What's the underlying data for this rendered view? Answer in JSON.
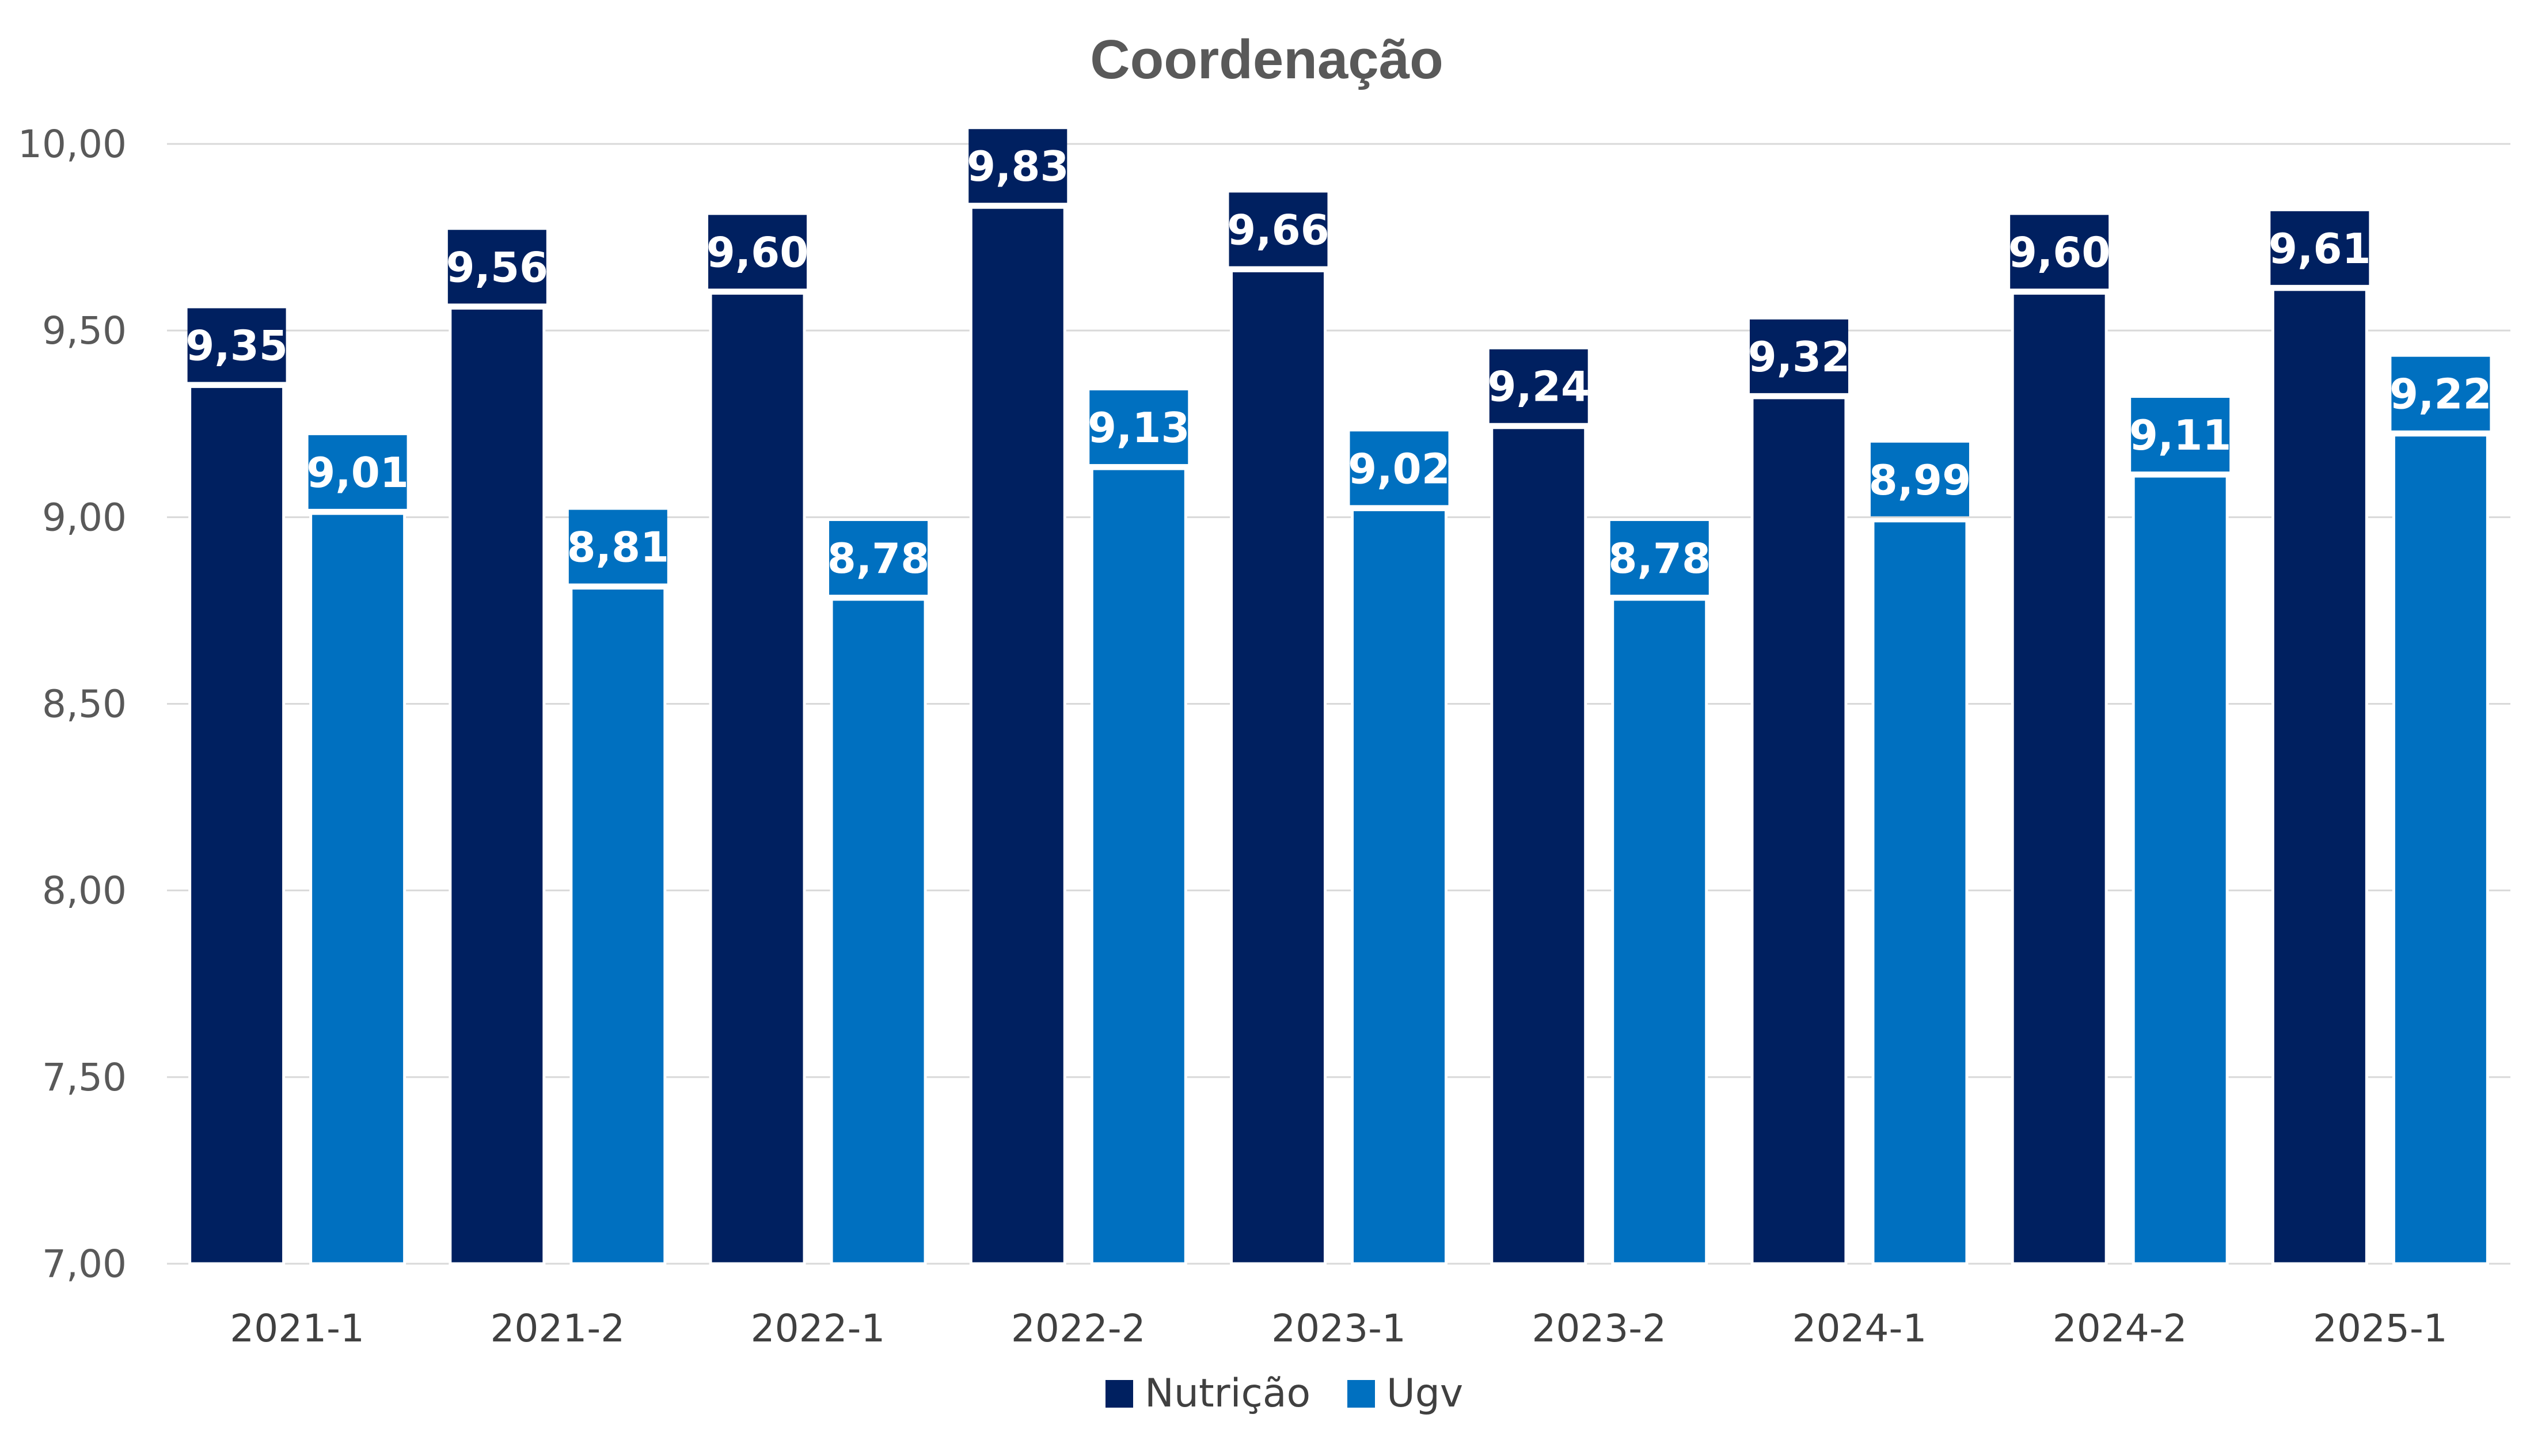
{
  "chart_data": {
    "type": "bar",
    "title": "Coordenação",
    "categories": [
      "2021-1",
      "2021-2",
      "2022-1",
      "2022-2",
      "2023-1",
      "2023-2",
      "2024-1",
      "2024-2",
      "2025-1"
    ],
    "series": [
      {
        "name": "Nutrição",
        "color": "#002060",
        "values": [
          9.35,
          9.56,
          9.6,
          9.83,
          9.66,
          9.24,
          9.32,
          9.6,
          9.61
        ],
        "labels": [
          "9,35",
          "9,56",
          "9,60",
          "9,83",
          "9,66",
          "9,24",
          "9,32",
          "9,60",
          "9,61"
        ]
      },
      {
        "name": "Ugv",
        "color": "#0070C0",
        "values": [
          9.01,
          8.81,
          8.78,
          9.13,
          9.02,
          8.78,
          8.99,
          9.11,
          9.22
        ],
        "labels": [
          "9,01",
          "8,81",
          "8,78",
          "9,13",
          "9,02",
          "8,78",
          "8,99",
          "9,11",
          "9,22"
        ]
      }
    ],
    "ylim": [
      7.0,
      10.0
    ],
    "yticks": [
      7.0,
      7.5,
      8.0,
      8.5,
      9.0,
      9.5,
      10.0
    ],
    "ytick_labels": [
      "7,00",
      "7,50",
      "8,00",
      "8,50",
      "9,00",
      "9,50",
      "10,00"
    ],
    "xlabel": "",
    "ylabel": "",
    "grid": true,
    "legend_position": "bottom"
  }
}
